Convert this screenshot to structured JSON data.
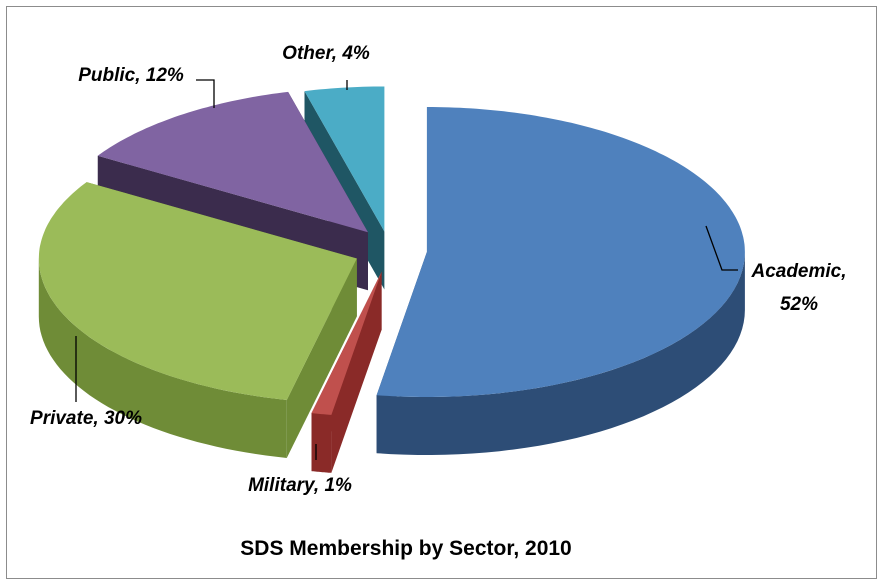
{
  "chart_data": {
    "type": "pie",
    "style": "3d-exploded",
    "title": "SDS Membership by Sector, 2010",
    "slices": [
      {
        "name": "Academic",
        "value": 52,
        "label_line1": "Academic,",
        "label_line2": "52%",
        "color": "#4f81bd",
        "side_color": "#2d4d76"
      },
      {
        "name": "Military",
        "value": 1,
        "label": "Military, 1%",
        "color": "#c0504d",
        "side_color": "#8a2a28"
      },
      {
        "name": "Private",
        "value": 30,
        "label": "Private, 30%",
        "color": "#9bbb59",
        "side_color": "#6f8c37"
      },
      {
        "name": "Public",
        "value": 12,
        "label": "Public, 12%",
        "color": "#8064a2",
        "side_color": "#3b2c4d"
      },
      {
        "name": "Other",
        "value": 4,
        "label": "Other, 4%",
        "color": "#4bacc6",
        "side_color": "#1f5664"
      }
    ],
    "legend": "none"
  }
}
